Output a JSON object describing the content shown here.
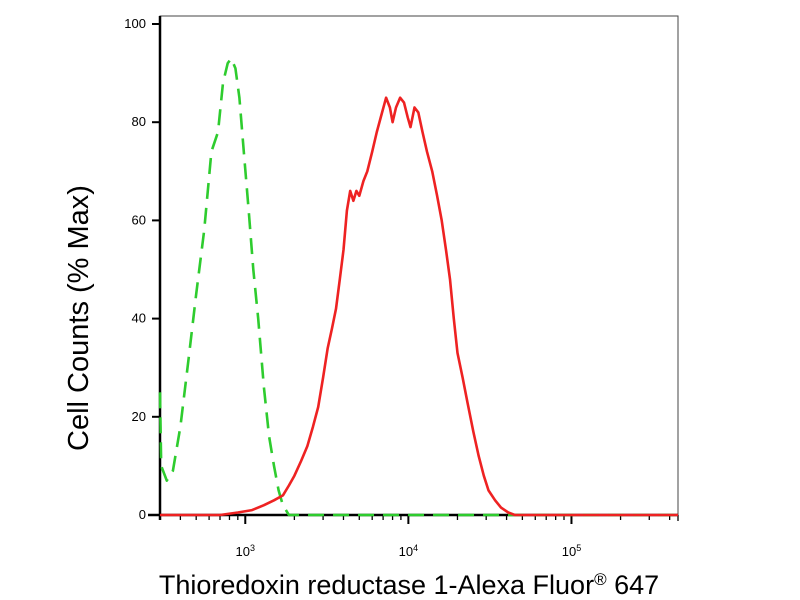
{
  "chart_data": {
    "type": "line",
    "title": "",
    "xlabel": "Thioredoxin reductase 1-Alexa Fluor",
    "xlabel_superscript": "®",
    "xlabel_suffix": " 647",
    "ylabel": "Cell Counts (% Max)",
    "x_scale": "log",
    "xlim": [
      300,
      450000
    ],
    "ylim": [
      0,
      100
    ],
    "y_ticks": [
      0,
      20,
      40,
      60,
      80,
      100
    ],
    "y_tick_labels": [
      "0",
      "20",
      "40",
      "60",
      "80",
      "100"
    ],
    "x_major_ticks": [
      1000,
      10000,
      100000
    ],
    "x_tick_labels": [
      {
        "base": "10",
        "exp": "3"
      },
      {
        "base": "10",
        "exp": "4"
      },
      {
        "base": "10",
        "exp": "5"
      }
    ],
    "grid": false,
    "legend": "none",
    "series": [
      {
        "color": "#2ecc2e",
        "style": "dashed",
        "points": [
          [
            300,
            25
          ],
          [
            305,
            10
          ],
          [
            330,
            7
          ],
          [
            360,
            9
          ],
          [
            400,
            18
          ],
          [
            450,
            32
          ],
          [
            500,
            45
          ],
          [
            560,
            58
          ],
          [
            620,
            74
          ],
          [
            680,
            78
          ],
          [
            730,
            88
          ],
          [
            780,
            92
          ],
          [
            820,
            93
          ],
          [
            870,
            91
          ],
          [
            920,
            85
          ],
          [
            980,
            74
          ],
          [
            1050,
            62
          ],
          [
            1120,
            50
          ],
          [
            1200,
            40
          ],
          [
            1300,
            26
          ],
          [
            1400,
            16
          ],
          [
            1500,
            10
          ],
          [
            1600,
            5
          ],
          [
            1700,
            2
          ],
          [
            1850,
            0
          ],
          [
            2500,
            0
          ],
          [
            10000,
            0
          ],
          [
            100000,
            0
          ],
          [
            450000,
            0
          ]
        ]
      },
      {
        "color": "#ee2222",
        "style": "solid",
        "points": [
          [
            300,
            0
          ],
          [
            700,
            0
          ],
          [
            900,
            0.5
          ],
          [
            1100,
            1
          ],
          [
            1300,
            2
          ],
          [
            1500,
            3
          ],
          [
            1700,
            4
          ],
          [
            1850,
            6
          ],
          [
            2000,
            8
          ],
          [
            2200,
            11
          ],
          [
            2400,
            14
          ],
          [
            2600,
            18
          ],
          [
            2800,
            22
          ],
          [
            3000,
            28
          ],
          [
            3200,
            34
          ],
          [
            3400,
            38
          ],
          [
            3600,
            42
          ],
          [
            3800,
            48
          ],
          [
            4000,
            54
          ],
          [
            4200,
            62
          ],
          [
            4400,
            66
          ],
          [
            4600,
            64
          ],
          [
            4800,
            66
          ],
          [
            5000,
            65
          ],
          [
            5300,
            68
          ],
          [
            5600,
            70
          ],
          [
            6000,
            74
          ],
          [
            6400,
            78
          ],
          [
            6900,
            82
          ],
          [
            7300,
            85
          ],
          [
            7700,
            83
          ],
          [
            8000,
            80
          ],
          [
            8400,
            83
          ],
          [
            8900,
            85
          ],
          [
            9400,
            84
          ],
          [
            9900,
            81
          ],
          [
            10300,
            79
          ],
          [
            10900,
            83
          ],
          [
            11500,
            82
          ],
          [
            12200,
            78
          ],
          [
            13000,
            74
          ],
          [
            14000,
            70
          ],
          [
            15000,
            65
          ],
          [
            16000,
            60
          ],
          [
            17000,
            54
          ],
          [
            18000,
            48
          ],
          [
            19000,
            40
          ],
          [
            20000,
            33
          ],
          [
            21500,
            28
          ],
          [
            23000,
            23
          ],
          [
            25000,
            17
          ],
          [
            27000,
            12
          ],
          [
            29000,
            8
          ],
          [
            31000,
            5
          ],
          [
            34000,
            3
          ],
          [
            37000,
            1.5
          ],
          [
            41000,
            0.5
          ],
          [
            45000,
            0
          ],
          [
            450000,
            0
          ]
        ]
      }
    ]
  }
}
